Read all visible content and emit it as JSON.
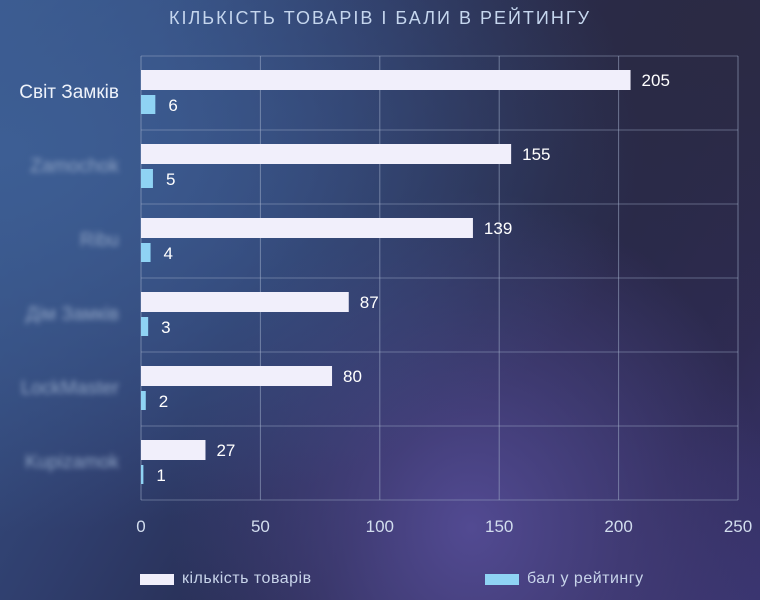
{
  "chart_data": {
    "type": "bar",
    "orientation": "horizontal",
    "title": "КІЛЬКІСТЬ ТОВАРІВ І БАЛИ В РЕЙТИНГУ",
    "categories": [
      "Світ Замків",
      "Zamochok",
      "Ribu",
      "Дім Замків",
      "LockMaster",
      "Kupizamok"
    ],
    "series": [
      {
        "name": "кількість товарів",
        "values": [
          205,
          155,
          139,
          87,
          80,
          27
        ]
      },
      {
        "name": "бал у рейтингу",
        "values": [
          6,
          5,
          4,
          3,
          2,
          1
        ]
      }
    ],
    "xlim": [
      0,
      250
    ],
    "xticks": [
      "0",
      "50",
      "100",
      "150",
      "200",
      "250"
    ],
    "grid": true,
    "legend_position": "bottom"
  },
  "colors": {
    "series_1": "#f1effb",
    "series_2": "#8fd3f4",
    "grid": "#a3b1cc",
    "blurred_labels_note": "category labels other than the first are blurred in the original"
  }
}
